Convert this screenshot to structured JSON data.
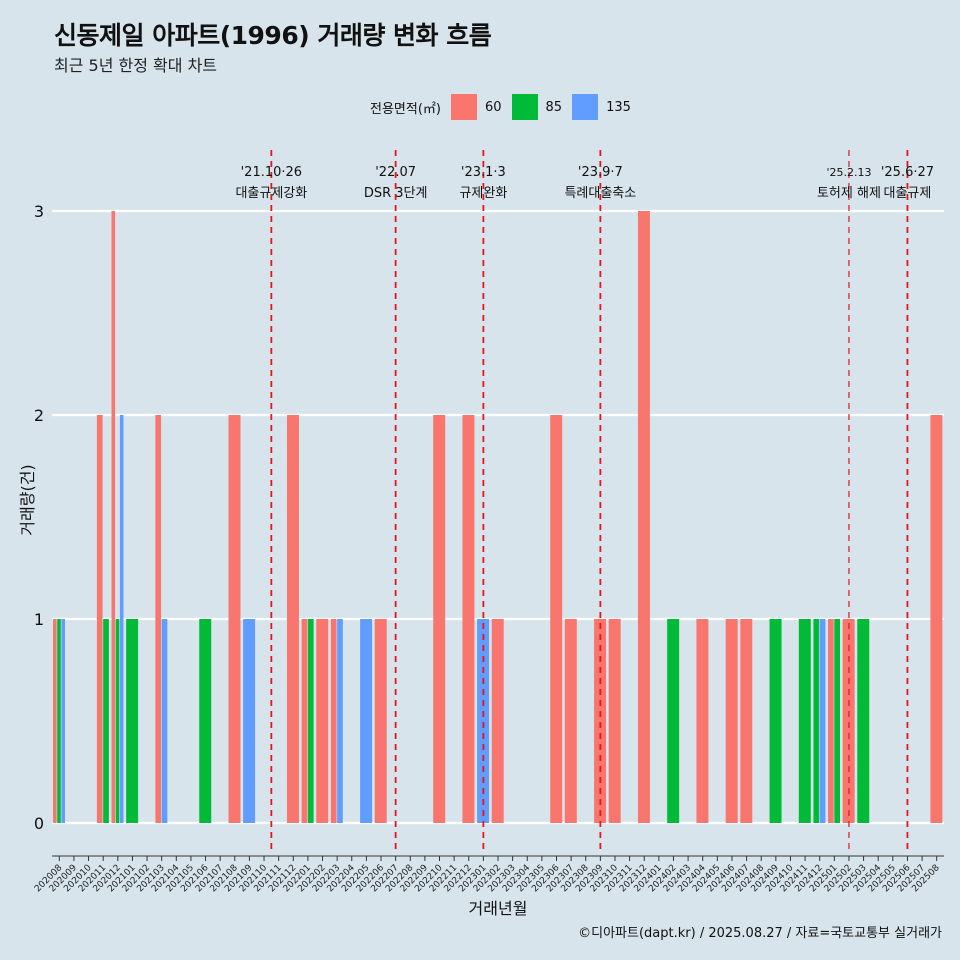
{
  "title": "신동제일 아파트(1996) 거래량 변화 흐름",
  "subtitle": "최근 5년 한정 확대 차트",
  "legend": {
    "title": "전용면적(㎡)",
    "items": [
      {
        "label": "60",
        "color": "#f8766d"
      },
      {
        "label": "85",
        "color": "#00ba38"
      },
      {
        "label": "135",
        "color": "#619cff"
      }
    ]
  },
  "caption": "©디아파트(dapt.kr) / 2025.08.27 / 자료=국토교통부 실거래가",
  "chart_data": {
    "type": "bar",
    "title": "신동제일 아파트(1996) 거래량 변화 흐름",
    "subtitle": "최근 5년 한정 확대 차트",
    "xlabel": "거래년월",
    "ylabel": "거래량(건)",
    "ylim": [
      0,
      3
    ],
    "yticks": [
      0,
      1,
      2,
      3
    ],
    "grid": "horizontal",
    "legend_position": "top",
    "categories": [
      "202008",
      "202009",
      "202010",
      "202011",
      "202012",
      "202101",
      "202102",
      "202103",
      "202104",
      "202105",
      "202106",
      "202107",
      "202108",
      "202109",
      "202110",
      "202111",
      "202112",
      "202201",
      "202202",
      "202203",
      "202204",
      "202205",
      "202206",
      "202207",
      "202208",
      "202209",
      "202210",
      "202211",
      "202212",
      "202301",
      "202302",
      "202303",
      "202304",
      "202305",
      "202306",
      "202307",
      "202308",
      "202309",
      "202310",
      "202311",
      "202312",
      "202401",
      "202402",
      "202403",
      "202404",
      "202405",
      "202406",
      "202407",
      "202408",
      "202409",
      "202410",
      "202411",
      "202412",
      "202501",
      "202502",
      "202503",
      "202504",
      "202505",
      "202506",
      "202507",
      "202508"
    ],
    "series": [
      {
        "name": "60",
        "color": "#f8766d",
        "values": [
          1,
          0,
          0,
          2,
          3,
          0,
          0,
          2,
          0,
          0,
          0,
          0,
          2,
          0,
          0,
          0,
          2,
          1,
          1,
          1,
          0,
          0,
          1,
          0,
          0,
          0,
          2,
          0,
          2,
          0,
          1,
          0,
          0,
          0,
          2,
          1,
          0,
          1,
          1,
          0,
          3,
          0,
          0,
          0,
          1,
          0,
          1,
          1,
          0,
          0,
          0,
          0,
          0,
          1,
          1,
          0,
          0,
          0,
          0,
          0,
          2
        ]
      },
      {
        "name": "85",
        "color": "#00ba38",
        "values": [
          1,
          0,
          0,
          1,
          1,
          1,
          0,
          0,
          0,
          0,
          1,
          0,
          0,
          0,
          0,
          0,
          0,
          1,
          0,
          0,
          0,
          0,
          0,
          0,
          0,
          0,
          0,
          0,
          0,
          0,
          0,
          0,
          0,
          0,
          0,
          0,
          0,
          0,
          0,
          0,
          0,
          0,
          1,
          0,
          0,
          0,
          0,
          0,
          0,
          1,
          0,
          1,
          1,
          1,
          0,
          1,
          0,
          0,
          0,
          0,
          0
        ]
      },
      {
        "name": "135",
        "color": "#619cff",
        "values": [
          1,
          0,
          0,
          0,
          2,
          0,
          0,
          1,
          0,
          0,
          0,
          0,
          0,
          1,
          0,
          0,
          0,
          0,
          0,
          1,
          0,
          1,
          0,
          0,
          0,
          0,
          0,
          0,
          0,
          1,
          0,
          0,
          0,
          0,
          0,
          0,
          0,
          0,
          0,
          0,
          0,
          0,
          0,
          0,
          0,
          0,
          0,
          0,
          0,
          0,
          0,
          0,
          1,
          0,
          0,
          0,
          0,
          0,
          0,
          0,
          0
        ]
      }
    ],
    "annotations": [
      {
        "date": "'21.10·26",
        "label": "대출규제강화",
        "index": 14.5
      },
      {
        "date": "'22.07",
        "label": "DSR 3단계",
        "index": 23
      },
      {
        "date": "'23.1·3",
        "label": "규제완화",
        "index": 29
      },
      {
        "date": "'23.9·7",
        "label": "특례대출축소",
        "index": 37
      },
      {
        "date": "'25.2.13",
        "label": "토허제 해제",
        "index": 54
      },
      {
        "date": "'25.6·27",
        "label": "대출규제",
        "index": 58
      }
    ]
  }
}
